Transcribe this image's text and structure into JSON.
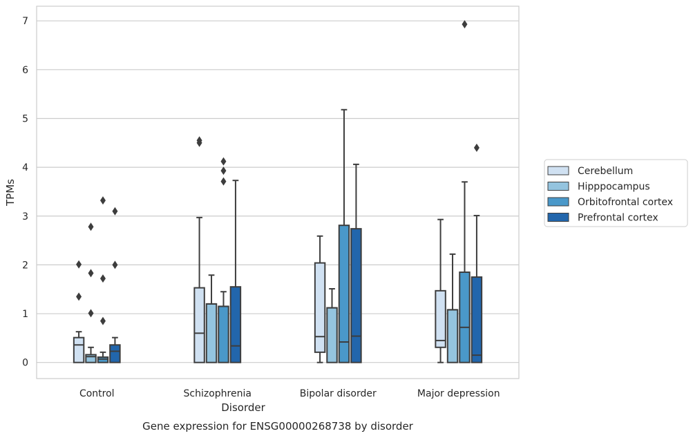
{
  "caption": "Gene expression for ENSG00000268738 by disorder",
  "chart_data": {
    "type": "box",
    "xlabel": "Disorder",
    "ylabel": "TPMs",
    "ylim": [
      -0.33,
      7.3
    ],
    "yticks": [
      0,
      1,
      2,
      3,
      4,
      5,
      6,
      7
    ],
    "grid": "horizontal",
    "legend_position": "right",
    "categories": [
      "Control",
      "Schizophrenia",
      "Bipolar disorder",
      "Major depression"
    ],
    "series": [
      {
        "name": "Cerebellum",
        "color": "#d0e1f2",
        "boxes": [
          {
            "q1": 0,
            "median": 0.36,
            "q3": 0.51,
            "whisker_low": 0,
            "whisker_high": 0.63,
            "outliers": [
              1.35,
              2.01
            ]
          },
          {
            "q1": 0,
            "median": 0.6,
            "q3": 1.53,
            "whisker_low": 0,
            "whisker_high": 2.97,
            "outliers": [
              4.5,
              4.55
            ]
          },
          {
            "q1": 0.21,
            "median": 0.53,
            "q3": 2.04,
            "whisker_low": 0,
            "whisker_high": 2.59,
            "outliers": []
          },
          {
            "q1": 0.31,
            "median": 0.45,
            "q3": 1.47,
            "whisker_low": 0,
            "whisker_high": 2.93,
            "outliers": []
          }
        ]
      },
      {
        "name": "Hipppocampus",
        "color": "#94c4df",
        "boxes": [
          {
            "q1": 0,
            "median": 0.12,
            "q3": 0.16,
            "whisker_low": 0,
            "whisker_high": 0.31,
            "outliers": [
              1.01,
              1.83,
              2.78
            ]
          },
          {
            "q1": 0,
            "median": 1.2,
            "q3": 1.2,
            "whisker_low": 0,
            "whisker_high": 1.79,
            "outliers": []
          },
          {
            "q1": 0,
            "median": 1.12,
            "q3": 1.12,
            "whisker_low": 0,
            "whisker_high": 1.51,
            "outliers": []
          },
          {
            "q1": 0,
            "median": 1.08,
            "q3": 1.08,
            "whisker_low": 0,
            "whisker_high": 2.22,
            "outliers": []
          }
        ]
      },
      {
        "name": "Orbitofrontal cortex",
        "color": "#4a98c9",
        "boxes": [
          {
            "q1": 0,
            "median": 0.07,
            "q3": 0.11,
            "whisker_low": 0,
            "whisker_high": 0.21,
            "outliers": [
              0.85,
              1.72,
              3.32
            ]
          },
          {
            "q1": 0,
            "median": 1.15,
            "q3": 1.15,
            "whisker_low": 0,
            "whisker_high": 1.45,
            "outliers": [
              3.71,
              3.93,
              4.12
            ]
          },
          {
            "q1": 0,
            "median": 0.42,
            "q3": 2.81,
            "whisker_low": 0,
            "whisker_high": 5.18,
            "outliers": []
          },
          {
            "q1": 0,
            "median": 0.72,
            "q3": 1.85,
            "whisker_low": 0,
            "whisker_high": 3.7,
            "outliers": [
              6.93
            ]
          }
        ]
      },
      {
        "name": "Prefrontal cortex",
        "color": "#2266ac",
        "boxes": [
          {
            "q1": 0,
            "median": 0.23,
            "q3": 0.36,
            "whisker_low": 0,
            "whisker_high": 0.51,
            "outliers": [
              2.0,
              3.1
            ]
          },
          {
            "q1": 0,
            "median": 0.34,
            "q3": 1.55,
            "whisker_low": 0,
            "whisker_high": 3.73,
            "outliers": []
          },
          {
            "q1": 0,
            "median": 0.54,
            "q3": 2.74,
            "whisker_low": 0,
            "whisker_high": 4.06,
            "outliers": []
          },
          {
            "q1": 0,
            "median": 0.15,
            "q3": 1.75,
            "whisker_low": 0,
            "whisker_high": 3.01,
            "outliers": [
              4.4
            ]
          }
        ]
      }
    ]
  }
}
